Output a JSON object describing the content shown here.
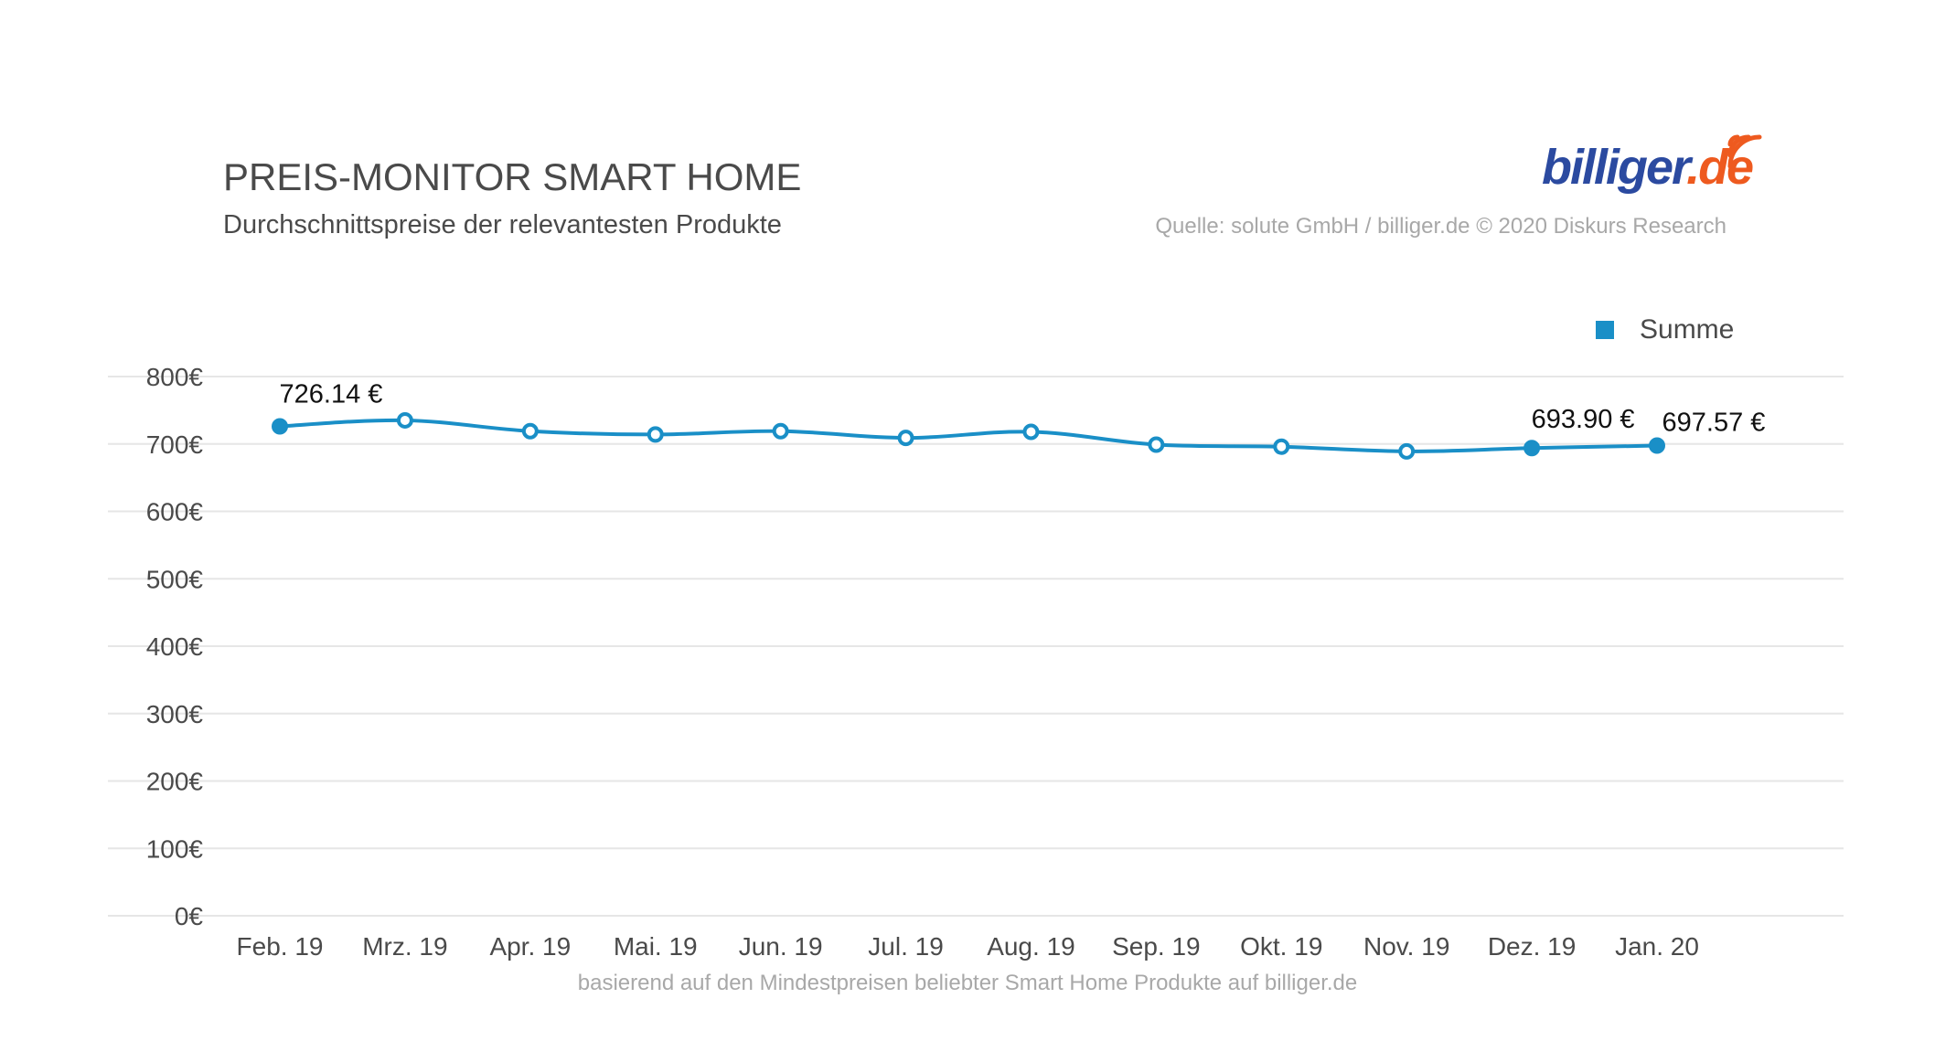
{
  "header": {
    "title": "PREIS-MONITOR SMART HOME",
    "subtitle": "Durchschnittspreise der relevantesten Produkte",
    "source": "Quelle: solute GmbH / billiger.de © 2020 Diskurs Research",
    "logo_text_main": "billiger",
    "logo_text_suffix": ".de"
  },
  "footer": {
    "note": "basierend auf den Mindestpreisen beliebter Smart Home Produkte auf billiger.de"
  },
  "colors": {
    "series": "#1a8fc7",
    "grid": "#e6e6e6",
    "logo_blue": "#2b4aa0",
    "logo_orange": "#ee5a1f"
  },
  "chart_data": {
    "type": "line",
    "title": "PREIS-MONITOR SMART HOME",
    "subtitle": "Durchschnittspreise der relevantesten Produkte",
    "categories": [
      "Feb. 19",
      "Mrz. 19",
      "Apr. 19",
      "Mai. 19",
      "Jun. 19",
      "Jul. 19",
      "Aug. 19",
      "Sep. 19",
      "Okt. 19",
      "Nov. 19",
      "Dez. 19",
      "Jan. 20"
    ],
    "series": [
      {
        "name": "Summe",
        "values": [
          726.14,
          735,
          719,
          714,
          719,
          709,
          718,
          699,
          696,
          689,
          693.9,
          697.57
        ]
      }
    ],
    "data_labels": [
      {
        "index": 0,
        "text": "726.14 €"
      },
      {
        "index": 10,
        "text": "693.90 €"
      },
      {
        "index": 11,
        "text": "697.57 €"
      }
    ],
    "filled_points": [
      0,
      10,
      11
    ],
    "ylim": [
      0,
      800
    ],
    "yticks": [
      0,
      100,
      200,
      300,
      400,
      500,
      600,
      700,
      800
    ],
    "ytick_labels": [
      "0€",
      "100€",
      "200€",
      "300€",
      "400€",
      "500€",
      "600€",
      "700€",
      "800€"
    ],
    "grid": true,
    "legend_position": "top-right",
    "xlabel": "",
    "ylabel": ""
  }
}
